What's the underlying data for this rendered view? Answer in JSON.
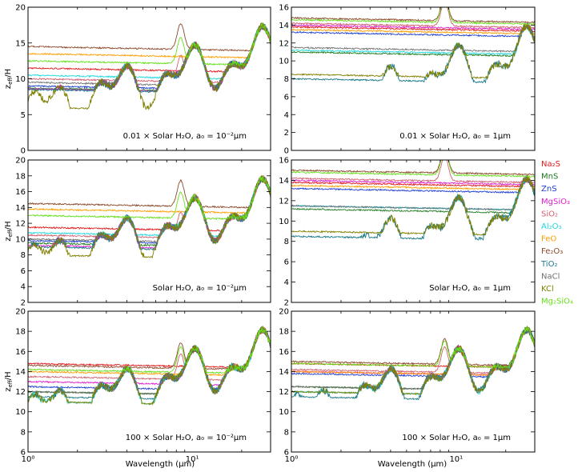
{
  "figure": {
    "x_axis_label": "Wavelength (μm)",
    "y_axis_label_main": "z",
    "y_axis_label_sub": "eff",
    "y_axis_label_tail": "/H"
  },
  "legend": [
    {
      "label": "Na₂S",
      "color": "#e41a1c"
    },
    {
      "label": "MnS",
      "color": "#1f7a1f"
    },
    {
      "label": "ZnS",
      "color": "#1f3fd1"
    },
    {
      "label": "MgSiO₃",
      "color": "#e020d0"
    },
    {
      "label": "SiO₂",
      "color": "#d06070"
    },
    {
      "label": "Al₂O₃",
      "color": "#20d8e0"
    },
    {
      "label": "FeO",
      "color": "#ff9d00"
    },
    {
      "label": "Fe₂O₃",
      "color": "#8b4a2b"
    },
    {
      "label": "TiO₂",
      "color": "#1a7a8a"
    },
    {
      "label": "NaCl",
      "color": "#707070"
    },
    {
      "label": "KCl",
      "color": "#808000"
    },
    {
      "label": "Mg₂SiO₄",
      "color": "#66e01a"
    }
  ],
  "chart_data": [
    {
      "type": "line",
      "panel": "top-left",
      "annotation": "0.01 × Solar H₂O, a₀ = 10⁻²μm",
      "xlabel": "",
      "ylabel": "z_eff/H",
      "xscale": "log",
      "xlim": [
        1,
        30
      ],
      "ylim": [
        0,
        20
      ],
      "yticks": [
        0,
        5,
        10,
        15,
        20
      ],
      "xtick_labels": [],
      "series": [
        {
          "name": "Na₂S",
          "level": 11.5
        },
        {
          "name": "MnS",
          "level": 8.7
        },
        {
          "name": "ZnS",
          "level": 9.0
        },
        {
          "name": "MgSiO₃",
          "level": 8.6
        },
        {
          "name": "SiO₂",
          "level": 10.0
        },
        {
          "name": "Al₂O₃",
          "level": 10.5
        },
        {
          "name": "FeO",
          "level": 13.5
        },
        {
          "name": "Fe₂O₃",
          "level": 14.5
        },
        {
          "name": "TiO₂",
          "level": 8.5
        },
        {
          "name": "NaCl",
          "level": 9.5
        },
        {
          "name": "KCl",
          "level": 6.0
        },
        {
          "name": "Mg₂SiO₄",
          "level": 12.5
        }
      ]
    },
    {
      "type": "line",
      "panel": "top-right",
      "annotation": "0.01 × Solar H₂O, a₀ = 1μm",
      "xlabel": "",
      "ylabel": "",
      "xscale": "log",
      "xlim": [
        1,
        30
      ],
      "ylim": [
        0,
        16
      ],
      "yticks": [
        0,
        2,
        4,
        6,
        8,
        10,
        12,
        14,
        16
      ],
      "xtick_labels": [],
      "series": [
        {
          "name": "Na₂S",
          "level": 13.8
        },
        {
          "name": "MnS",
          "level": 11.0
        },
        {
          "name": "ZnS",
          "level": 13.2
        },
        {
          "name": "MgSiO₃",
          "level": 14.0
        },
        {
          "name": "SiO₂",
          "level": 14.2
        },
        {
          "name": "Al₂O₃",
          "level": 11.2
        },
        {
          "name": "FeO",
          "level": 13.5
        },
        {
          "name": "Fe₂O₃",
          "level": 14.8
        },
        {
          "name": "TiO₂",
          "level": 8.0
        },
        {
          "name": "NaCl",
          "level": 11.5
        },
        {
          "name": "KCl",
          "level": 8.5
        },
        {
          "name": "Mg₂SiO₄",
          "level": 14.6
        }
      ]
    },
    {
      "type": "line",
      "panel": "middle-left",
      "annotation": "Solar H₂O, a₀ = 10⁻²μm",
      "xlabel": "",
      "ylabel": "z_eff/H",
      "xscale": "log",
      "xlim": [
        1,
        30
      ],
      "ylim": [
        2,
        20
      ],
      "yticks": [
        2,
        4,
        6,
        8,
        10,
        12,
        14,
        16,
        18,
        20
      ],
      "xtick_labels": [],
      "series": [
        {
          "name": "Na₂S",
          "level": 11.5
        },
        {
          "name": "MnS",
          "level": 9.5
        },
        {
          "name": "ZnS",
          "level": 9.8
        },
        {
          "name": "MgSiO₃",
          "level": 9.2
        },
        {
          "name": "SiO₂",
          "level": 10.5
        },
        {
          "name": "Al₂O₃",
          "level": 10.8
        },
        {
          "name": "FeO",
          "level": 13.8
        },
        {
          "name": "Fe₂O₃",
          "level": 14.5
        },
        {
          "name": "TiO₂",
          "level": 9.0
        },
        {
          "name": "NaCl",
          "level": 10.0
        },
        {
          "name": "KCl",
          "level": 8.0
        },
        {
          "name": "Mg₂SiO₄",
          "level": 13.0
        }
      ]
    },
    {
      "type": "line",
      "panel": "middle-right",
      "annotation": "Solar H₂O, a₀ = 1μm",
      "xlabel": "",
      "ylabel": "",
      "xscale": "log",
      "xlim": [
        1,
        30
      ],
      "ylim": [
        2,
        16
      ],
      "yticks": [
        2,
        4,
        6,
        8,
        10,
        12,
        14,
        16
      ],
      "xtick_labels": [],
      "series": [
        {
          "name": "Na₂S",
          "level": 13.8
        },
        {
          "name": "MnS",
          "level": 11.2
        },
        {
          "name": "ZnS",
          "level": 13.2
        },
        {
          "name": "MgSiO₃",
          "level": 14.0
        },
        {
          "name": "SiO₂",
          "level": 14.2
        },
        {
          "name": "Al₂O₃",
          "level": 11.5
        },
        {
          "name": "FeO",
          "level": 13.5
        },
        {
          "name": "Fe₂O₃",
          "level": 15.0
        },
        {
          "name": "TiO₂",
          "level": 8.5
        },
        {
          "name": "NaCl",
          "level": 11.5
        },
        {
          "name": "KCl",
          "level": 9.0
        },
        {
          "name": "Mg₂SiO₄",
          "level": 14.8
        }
      ]
    },
    {
      "type": "line",
      "panel": "bottom-left",
      "annotation": "100 × Solar H₂O, a₀ = 10⁻²μm",
      "xlabel": "Wavelength (μm)",
      "ylabel": "z_eff/H",
      "xscale": "log",
      "xlim": [
        1,
        30
      ],
      "ylim": [
        6,
        20
      ],
      "yticks": [
        6,
        8,
        10,
        12,
        14,
        16,
        18,
        20
      ],
      "xtick_labels": [
        "10⁰",
        "10¹"
      ],
      "series": [
        {
          "name": "Na₂S",
          "level": 14.8
        },
        {
          "name": "MnS",
          "level": 12.0
        },
        {
          "name": "ZnS",
          "level": 12.5
        },
        {
          "name": "MgSiO₃",
          "level": 13.0
        },
        {
          "name": "SiO₂",
          "level": 13.5
        },
        {
          "name": "Al₂O₃",
          "level": 11.0
        },
        {
          "name": "FeO",
          "level": 14.0
        },
        {
          "name": "Fe₂O₃",
          "level": 14.6
        },
        {
          "name": "TiO₂",
          "level": 11.5
        },
        {
          "name": "NaCl",
          "level": 12.0
        },
        {
          "name": "KCl",
          "level": 11.0
        },
        {
          "name": "Mg₂SiO₄",
          "level": 14.2
        }
      ]
    },
    {
      "type": "line",
      "panel": "bottom-right",
      "annotation": "100 × Solar H₂O, a₀ = 1μm",
      "xlabel": "Wavelength (μm)",
      "ylabel": "",
      "xscale": "log",
      "xlim": [
        1,
        30
      ],
      "ylim": [
        6,
        20
      ],
      "yticks": [
        6,
        8,
        10,
        12,
        14,
        16,
        18,
        20
      ],
      "xtick_labels": [
        "10⁰",
        "10¹"
      ],
      "series": [
        {
          "name": "Na₂S",
          "level": 14.8
        },
        {
          "name": "MnS",
          "level": 12.5
        },
        {
          "name": "ZnS",
          "level": 13.8
        },
        {
          "name": "MgSiO₃",
          "level": 14.0
        },
        {
          "name": "SiO₂",
          "level": 14.2
        },
        {
          "name": "Al₂O₃",
          "level": 12.0
        },
        {
          "name": "FeO",
          "level": 14.0
        },
        {
          "name": "Fe₂O₃",
          "level": 15.0
        },
        {
          "name": "TiO₂",
          "level": 11.5
        },
        {
          "name": "NaCl",
          "level": 12.5
        },
        {
          "name": "KCl",
          "level": 12.0
        },
        {
          "name": "Mg₂SiO₄",
          "level": 14.8
        }
      ]
    }
  ]
}
